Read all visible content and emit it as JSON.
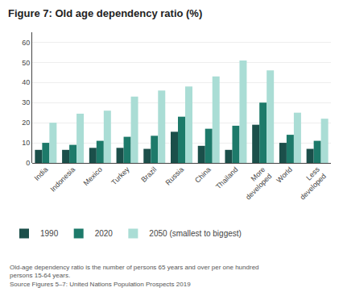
{
  "chart_data": {
    "type": "bar",
    "title": "Figure 7: Old age dependency ratio (%)",
    "categories": [
      "India",
      "Indonesia",
      "Mexico",
      "Turkey",
      "Brazil",
      "Russia",
      "China",
      "Thailand",
      "More\ndeveloped",
      "World",
      "Less\ndeveloped"
    ],
    "series": [
      {
        "name": "1990",
        "color": "#1b4f4a",
        "values": [
          6.5,
          6.5,
          7.5,
          7.5,
          7.0,
          15.5,
          8.5,
          6.5,
          19.0,
          10.0,
          7.0
        ]
      },
      {
        "name": "2020",
        "color": "#1d7a6a",
        "values": [
          10.0,
          9.0,
          11.0,
          13.0,
          13.5,
          23.0,
          17.0,
          18.5,
          30.0,
          14.0,
          11.0
        ]
      },
      {
        "name": "2050 (smallest to biggest)",
        "color": "#aaddd5",
        "values": [
          20.0,
          24.5,
          26.0,
          33.0,
          36.0,
          38.0,
          43.0,
          51.0,
          46.0,
          25.0,
          22.0
        ]
      }
    ],
    "ylim": [
      0,
      65
    ],
    "yticks": [
      0,
      10,
      20,
      30,
      40,
      50,
      60
    ],
    "grid": true,
    "legend": "bottom",
    "annotations": [
      "Old-age dependency ratio is the number of persons 65 years and over per one hundred",
      "persons 15-64 years.",
      "Source Figures 5–7: United Nations Population Prospects 2019"
    ]
  }
}
